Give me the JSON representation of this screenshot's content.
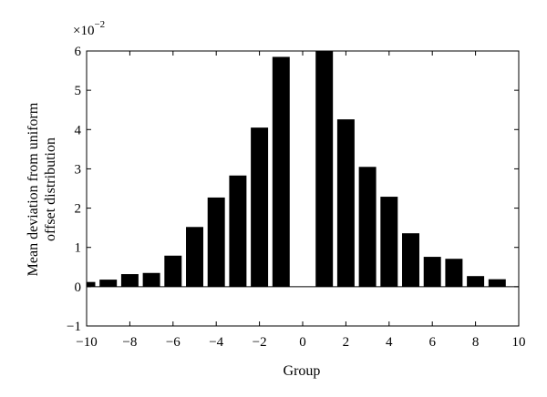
{
  "chart_data": {
    "type": "bar",
    "xlabel": "Group",
    "ylabel_lines": [
      "Mean deviation from uniform",
      "offset distribution"
    ],
    "y_scale_label": "×10",
    "y_scale_exponent": "−2",
    "xlim": [
      -10,
      10
    ],
    "ylim": [
      -1,
      6
    ],
    "x_ticks": [
      -10,
      -8,
      -6,
      -4,
      -2,
      0,
      2,
      4,
      6,
      8,
      10
    ],
    "x_tick_labels": [
      "−10",
      "−8",
      "−6",
      "−4",
      "−2",
      "0",
      "2",
      "4",
      "6",
      "8",
      "10"
    ],
    "y_ticks": [
      -1,
      0,
      1,
      2,
      3,
      4,
      5,
      6
    ],
    "y_tick_labels": [
      "−1",
      "0",
      "1",
      "2",
      "3",
      "4",
      "5",
      "6"
    ],
    "bar_width": 0.8,
    "x": [
      -10,
      -9,
      -8,
      -7,
      -6,
      -5,
      -4,
      -3,
      -2,
      -1,
      1,
      2,
      3,
      4,
      5,
      6,
      7,
      8,
      9
    ],
    "values": [
      0.12,
      0.18,
      0.32,
      0.35,
      0.79,
      1.52,
      2.27,
      2.83,
      4.05,
      5.85,
      6.0,
      4.26,
      3.05,
      2.29,
      1.36,
      0.76,
      0.71,
      0.27,
      0.19
    ],
    "grid": false,
    "legend": "none"
  }
}
